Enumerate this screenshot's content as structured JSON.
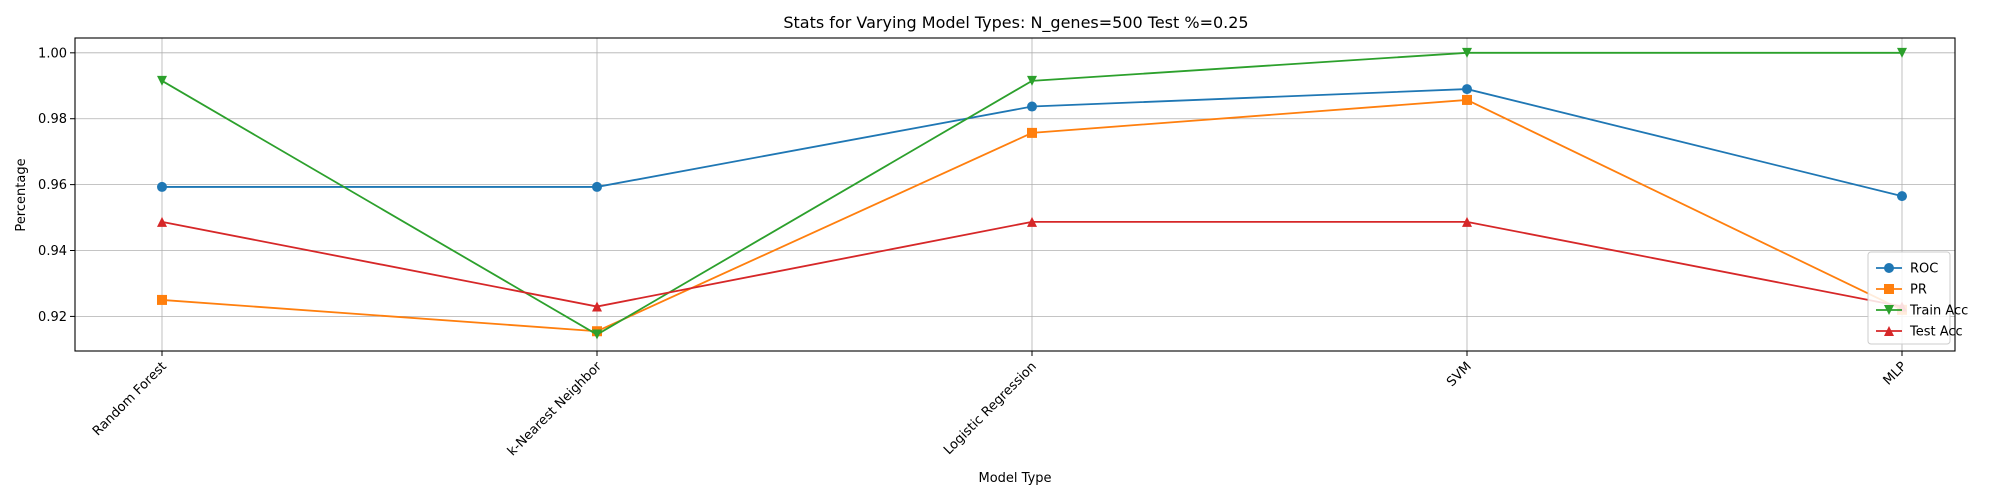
{
  "chart_data": {
    "type": "line",
    "title": "Stats for Varying Model Types: N_genes=500 Test %=0.25",
    "xlabel": "Model Type",
    "ylabel": "Percentage",
    "categories": [
      "Random Forest",
      "k-Nearest Neighbor",
      "Logistic Regression",
      "SVM",
      "MLP"
    ],
    "ylim": [
      0.9095,
      1.0045
    ],
    "yticks": [
      0.92,
      0.94,
      0.96,
      0.98,
      1.0
    ],
    "ytick_labels": [
      "0.92",
      "0.94",
      "0.96",
      "0.98",
      "1.00"
    ],
    "grid": true,
    "legend_position": "lower-right",
    "series": [
      {
        "name": "ROC",
        "color": "#1f77b4",
        "marker": "circle",
        "values": [
          0.9593,
          0.9593,
          0.9837,
          0.989,
          0.9565
        ]
      },
      {
        "name": "PR",
        "color": "#ff7f0e",
        "marker": "square",
        "values": [
          0.925,
          0.9155,
          0.9757,
          0.9857,
          0.922
        ]
      },
      {
        "name": "Train Acc",
        "color": "#2ca02c",
        "marker": "triangle-down",
        "values": [
          0.9915,
          0.9145,
          0.9915,
          1.0,
          1.0
        ]
      },
      {
        "name": "Test Acc",
        "color": "#d62728",
        "marker": "triangle-up",
        "values": [
          0.9487,
          0.923,
          0.9487,
          0.9487,
          0.923
        ]
      }
    ]
  }
}
